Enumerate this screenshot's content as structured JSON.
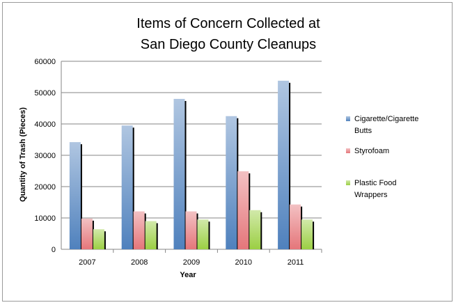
{
  "chart_data": {
    "type": "bar",
    "title_lines": [
      "Items of Concern Collected at",
      "San Diego County Cleanups"
    ],
    "xlabel": "Year",
    "ylabel": "Quantity of Trash  (Pieces)",
    "categories": [
      "2007",
      "2008",
      "2009",
      "2010",
      "2011"
    ],
    "ylim": [
      0,
      60000
    ],
    "yticks": [
      0,
      10000,
      20000,
      30000,
      40000,
      50000,
      60000
    ],
    "grid": true,
    "legend_position": "right",
    "series": [
      {
        "name_lines": [
          "Cigarette/Cigarette",
          "Butts"
        ],
        "color": "#4f81bd",
        "values": [
          34200,
          39500,
          48000,
          42500,
          53800
        ]
      },
      {
        "name_lines": [
          "Styrofoam"
        ],
        "color": "#e5767a",
        "values": [
          9800,
          12100,
          12100,
          24900,
          14300
        ]
      },
      {
        "name_lines": [
          "Plastic Food",
          "Wrappers"
        ],
        "color": "#9bcf43",
        "values": [
          6400,
          9000,
          9500,
          12500,
          9500
        ]
      }
    ]
  }
}
